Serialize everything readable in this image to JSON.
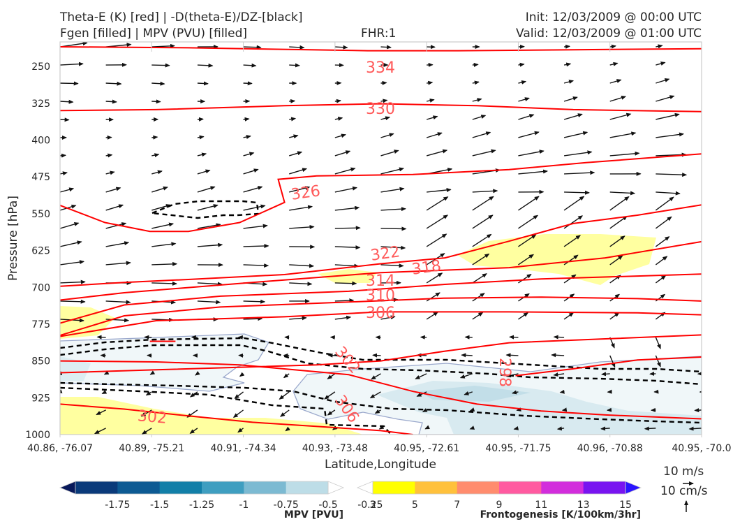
{
  "header": {
    "title_line1": "Theta-E (K) [red] | -D(theta-E)/DZ-[black]",
    "title_line2": "Fgen [filled] | MPV (PVU) [filled]",
    "fhr": "FHR:1",
    "init": "Init: 12/03/2009 @ 00:00 UTC",
    "valid": "Valid: 12/03/2009 @ 01:00 UTC"
  },
  "chart_data": {
    "type": "cross-section",
    "xlabel": "Latitude,Longitude",
    "ylabel": "Pressure [hPa]",
    "x_ticks": [
      "40.86, -76.07",
      "40.89, -75.21",
      "40.91, -74.34",
      "40.93, -73.48",
      "40.95, -72.61",
      "40.95, -71.75",
      "40.96, -70.88",
      "40.95, -70.0"
    ],
    "y_ticks": [
      250,
      325,
      400,
      475,
      550,
      625,
      700,
      775,
      850,
      925,
      1000
    ],
    "ylim": [
      1000,
      200
    ],
    "theta_e_contours": [
      {
        "label": "334",
        "level": 334,
        "points": [
          [
            0,
            210
          ],
          [
            0.2,
            212
          ],
          [
            0.48,
            218
          ],
          [
            0.62,
            218
          ],
          [
            0.8,
            216
          ],
          [
            1,
            214
          ]
        ]
      },
      {
        "label": "330",
        "level": 330,
        "points": [
          [
            0,
            340
          ],
          [
            0.15,
            338
          ],
          [
            0.35,
            330
          ],
          [
            0.5,
            326
          ],
          [
            0.65,
            330
          ],
          [
            0.8,
            338
          ],
          [
            1,
            342
          ]
        ]
      },
      {
        "label": "326",
        "level": 326,
        "points": [
          [
            0,
            533
          ],
          [
            0.07,
            568
          ],
          [
            0.14,
            586
          ],
          [
            0.2,
            586
          ],
          [
            0.28,
            568
          ],
          [
            0.35,
            527
          ],
          [
            0.34,
            480
          ],
          [
            0.4,
            473
          ],
          [
            0.55,
            470
          ],
          [
            0.7,
            460
          ],
          [
            0.82,
            446
          ],
          [
            1,
            428
          ]
        ]
      },
      {
        "label": "322",
        "level": 322,
        "points": [
          [
            0,
            698
          ],
          [
            0.1,
            690
          ],
          [
            0.2,
            684
          ],
          [
            0.35,
            674
          ],
          [
            0.5,
            652
          ],
          [
            0.6,
            640
          ],
          [
            0.7,
            606
          ],
          [
            0.8,
            570
          ],
          [
            0.9,
            553
          ],
          [
            1,
            532
          ]
        ]
      },
      {
        "label": "318",
        "level": 318,
        "points": [
          [
            0,
            726
          ],
          [
            0.1,
            711
          ],
          [
            0.3,
            690
          ],
          [
            0.5,
            670
          ],
          [
            0.7,
            660
          ],
          [
            0.85,
            640
          ],
          [
            1,
            607
          ]
        ]
      },
      {
        "label": "314",
        "level": 314,
        "points": [
          [
            0,
            773
          ],
          [
            0.1,
            736
          ],
          [
            0.25,
            718
          ],
          [
            0.45,
            708
          ],
          [
            0.6,
            694
          ],
          [
            0.75,
            683
          ],
          [
            0.9,
            677
          ],
          [
            1,
            673
          ]
        ]
      },
      {
        "label": "310",
        "level": 310,
        "points": [
          [
            0,
            798
          ],
          [
            0.1,
            758
          ],
          [
            0.25,
            740
          ],
          [
            0.45,
            730
          ],
          [
            0.6,
            722
          ],
          [
            0.75,
            720
          ],
          [
            0.9,
            723
          ],
          [
            1,
            728
          ]
        ]
      },
      {
        "label": "306",
        "level": 306,
        "points": [
          [
            0,
            800
          ],
          [
            0.15,
            768
          ],
          [
            0.35,
            760
          ],
          [
            0.5,
            750
          ],
          [
            0.7,
            750
          ],
          [
            0.9,
            752
          ],
          [
            1,
            756
          ]
        ]
      },
      {
        "label": "",
        "level": 302,
        "points": [
          [
            0,
            874
          ],
          [
            0.15,
            868
          ],
          [
            0.3,
            862
          ],
          [
            0.4,
            858
          ],
          [
            0.5,
            850
          ],
          [
            0.6,
            830
          ],
          [
            0.7,
            813
          ],
          [
            0.85,
            805
          ],
          [
            1,
            797
          ]
        ]
      },
      {
        "label": "",
        "level": 302,
        "points": [
          [
            0.14,
            810
          ],
          [
            0.18,
            810
          ]
        ]
      },
      {
        "label": "302",
        "level": 302,
        "points": [
          [
            0,
            850
          ],
          [
            0.15,
            852
          ],
          [
            0.28,
            858
          ],
          [
            0.45,
            878
          ],
          [
            0.55,
            912
          ],
          [
            0.65,
            938
          ],
          [
            0.75,
            952
          ],
          [
            0.85,
            960
          ],
          [
            1,
            968
          ]
        ]
      },
      {
        "label": "306",
        "level": 306,
        "points": [
          [
            0,
            938
          ],
          [
            0.1,
            948
          ],
          [
            0.2,
            962
          ],
          [
            0.3,
            975
          ],
          [
            0.42,
            985
          ],
          [
            0.5,
            992
          ],
          [
            0.55,
            1000
          ]
        ]
      },
      {
        "label": "298",
        "level": 298,
        "points": [
          [
            0.71,
            880
          ],
          [
            0.8,
            866
          ],
          [
            0.9,
            848
          ],
          [
            1,
            842
          ]
        ]
      }
    ],
    "mpv_levels": [
      -1.75,
      -1.5,
      -1.25,
      -1.0,
      -0.75,
      -0.5,
      -0.25
    ],
    "mpv_title": "MPV [PVU]",
    "fgen_levels": [
      3,
      5,
      7,
      9,
      11,
      13,
      15
    ],
    "fgen_title": "Frontogenesis [K/100km/3hr]",
    "colors": {
      "theta_e": "#ff0000",
      "theta_e_label": "#ff5a5a",
      "dthetae_dz": "#000000",
      "mpv": [
        "#08195b",
        "#0a3a7a",
        "#0d5a93",
        "#127fa8",
        "#3f9ec0",
        "#7cbad2",
        "#bddde7",
        "#ffffff"
      ],
      "fgen": [
        "#ffffff",
        "#ffff00",
        "#ffc13c",
        "#ff8c6e",
        "#ff5aa0",
        "#d22ddc",
        "#7814f0",
        "#2b14ff"
      ],
      "contour_mpv": "#9aa8cc"
    }
  },
  "reference_vector": {
    "horizontal_label": "10 m/s",
    "vertical_label": "10 cm/s"
  }
}
